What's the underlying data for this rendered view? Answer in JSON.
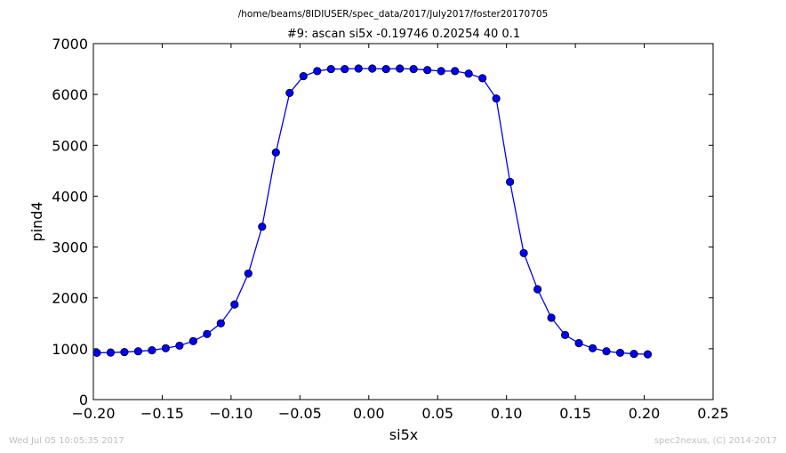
{
  "page": {
    "supertitle": "/home/beams/8IDIUSER/spec_data/2017/July2017/foster20170705",
    "footer_left": "Wed Jul 05 10:05:35 2017",
    "footer_right": "spec2nexus, (C) 2014-2017"
  },
  "chart_data": {
    "type": "line",
    "title": "#9: ascan  si5x -0.19746 0.20254  40 0.1",
    "xlabel": "si5x",
    "ylabel": "pind4",
    "xlim": [
      -0.2,
      0.25
    ],
    "ylim": [
      0,
      7000
    ],
    "xticks": [
      -0.2,
      -0.15,
      -0.1,
      -0.05,
      0.0,
      0.05,
      0.1,
      0.15,
      0.2,
      0.25
    ],
    "xtick_labels": [
      "−0.20",
      "−0.15",
      "−0.10",
      "−0.05",
      "0.00",
      "0.05",
      "0.10",
      "0.15",
      "0.20",
      "0.25"
    ],
    "yticks": [
      0,
      1000,
      2000,
      3000,
      4000,
      5000,
      6000,
      7000
    ],
    "ytick_labels": [
      "0",
      "1000",
      "2000",
      "3000",
      "4000",
      "5000",
      "6000",
      "7000"
    ],
    "grid": false,
    "series_color": "#0000ff",
    "marker_color": "#0000ff",
    "x": [
      -0.19746,
      -0.18746,
      -0.17746,
      -0.16746,
      -0.15746,
      -0.14746,
      -0.13746,
      -0.12746,
      -0.11746,
      -0.10746,
      -0.09746,
      -0.08746,
      -0.07746,
      -0.06746,
      -0.05746,
      -0.04746,
      -0.03746,
      -0.02746,
      -0.01746,
      -0.00746,
      0.00254,
      0.01254,
      0.02254,
      0.03254,
      0.04254,
      0.05254,
      0.06254,
      0.07254,
      0.08254,
      0.09254,
      0.10254,
      0.11254,
      0.12254,
      0.13254,
      0.14254,
      0.15254,
      0.16254,
      0.17254,
      0.18254,
      0.19254,
      0.20254
    ],
    "y": [
      920,
      925,
      935,
      950,
      970,
      1010,
      1060,
      1150,
      1290,
      1500,
      1870,
      2480,
      3400,
      4860,
      6030,
      6360,
      6460,
      6500,
      6500,
      6510,
      6510,
      6500,
      6510,
      6500,
      6480,
      6460,
      6460,
      6410,
      6320,
      5920,
      4280,
      2880,
      2170,
      1610,
      1270,
      1110,
      1010,
      950,
      920,
      900,
      890
    ]
  }
}
